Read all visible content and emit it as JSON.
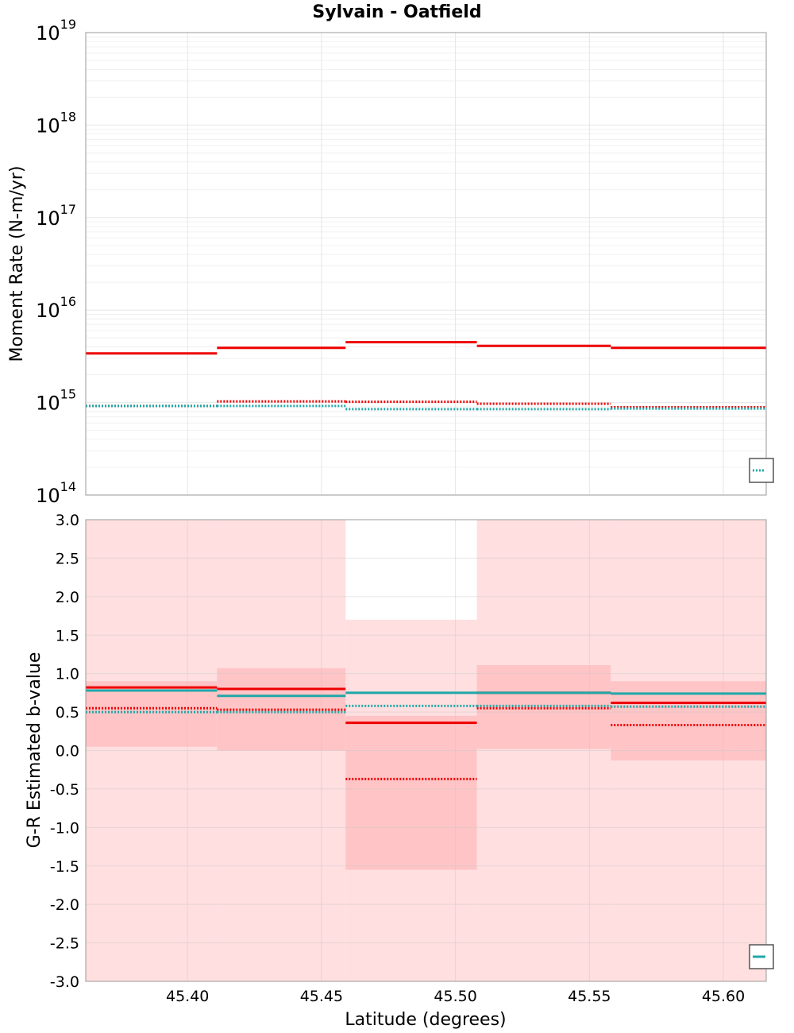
{
  "title": "Sylvain - Oatfield",
  "xlabel": "Latitude (degrees)",
  "colors": {
    "red": "#ee0000",
    "teal": "#20a8a8",
    "bin_band": "#ffc4c6",
    "outer_band": "#ffdfe0",
    "grid": "#e6e6e6",
    "frame": "#9a9a9a"
  },
  "chart_data": [
    {
      "type": "line",
      "name": "moment-rate",
      "ylabel": "Moment Rate (N-m/yr)",
      "yscale": "log",
      "ylim": [
        100000000000000.0,
        1e+19
      ],
      "xlim": [
        45.362,
        45.616
      ],
      "xticks": [
        45.4,
        45.45,
        45.5,
        45.55,
        45.6
      ],
      "yticks": [
        {
          "base": "10",
          "exp": "14",
          "value": 100000000000000.0
        },
        {
          "base": "10",
          "exp": "15",
          "value": 1000000000000000.0
        },
        {
          "base": "10",
          "exp": "16",
          "value": 1e+16
        },
        {
          "base": "10",
          "exp": "17",
          "value": 1e+17
        },
        {
          "base": "10",
          "exp": "18",
          "value": 1e+18
        },
        {
          "base": "10",
          "exp": "19",
          "value": 1e+19
        }
      ],
      "grid": true,
      "legend": "bottom-right",
      "bin_edges": [
        45.362,
        45.411,
        45.459,
        45.508,
        45.558,
        45.616
      ],
      "series": [
        {
          "style": "solid",
          "color": "red",
          "values": [
            3400000000000000.0,
            3900000000000000.0,
            4500000000000000.0,
            4100000000000000.0,
            3900000000000000.0
          ]
        },
        {
          "style": "dotted",
          "color": "red",
          "values": [
            920000000000000.0,
            1030000000000000.0,
            1020000000000000.0,
            970000000000000.0,
            890000000000000.0
          ]
        },
        {
          "style": "dotted",
          "color": "teal",
          "values": [
            920000000000000.0,
            920000000000000.0,
            850000000000000.0,
            850000000000000.0,
            860000000000000.0
          ]
        }
      ]
    },
    {
      "type": "line",
      "name": "b-value",
      "ylabel": "G-R Estimated b-value",
      "ylim": [
        -3.0,
        3.0
      ],
      "xlim": [
        45.362,
        45.616
      ],
      "xticks": [
        45.4,
        45.45,
        45.5,
        45.55,
        45.6
      ],
      "xticklabels": [
        "45.40",
        "45.45",
        "45.50",
        "45.55",
        "45.60"
      ],
      "yticks": [
        -3.0,
        -2.5,
        -2.0,
        -1.5,
        -1.0,
        -0.5,
        0.0,
        0.5,
        1.0,
        1.5,
        2.0,
        2.5,
        3.0
      ],
      "yticklabels": [
        "-3.0",
        "-2.5",
        "-2.0",
        "-1.5",
        "-1.0",
        "-0.5",
        "0.0",
        "0.5",
        "1.0",
        "1.5",
        "2.0",
        "2.5",
        "3.0"
      ],
      "grid": true,
      "legend": "bottom-right",
      "bin_edges": [
        45.362,
        45.411,
        45.459,
        45.508,
        45.558,
        45.616
      ],
      "outer_band": {
        "lower": [
          -3.0,
          -3.0,
          -3.0,
          -3.0,
          -3.0
        ],
        "upper": [
          3.0,
          3.0,
          1.7,
          3.0,
          3.0
        ]
      },
      "inner_band": {
        "lower": [
          0.05,
          0.0,
          -1.55,
          0.02,
          -0.13
        ],
        "upper": [
          0.9,
          1.07,
          0.45,
          1.11,
          0.9
        ]
      },
      "series": [
        {
          "style": "solid",
          "color": "red",
          "values": [
            0.82,
            0.8,
            0.36,
            0.75,
            0.62
          ]
        },
        {
          "style": "solid",
          "color": "teal",
          "values": [
            0.78,
            0.71,
            0.75,
            0.75,
            0.74
          ]
        },
        {
          "style": "dotted",
          "color": "red",
          "values": [
            0.55,
            0.53,
            -0.37,
            0.55,
            0.33
          ]
        },
        {
          "style": "dotted",
          "color": "teal",
          "values": [
            0.5,
            0.5,
            0.58,
            0.58,
            0.57
          ]
        }
      ]
    }
  ]
}
